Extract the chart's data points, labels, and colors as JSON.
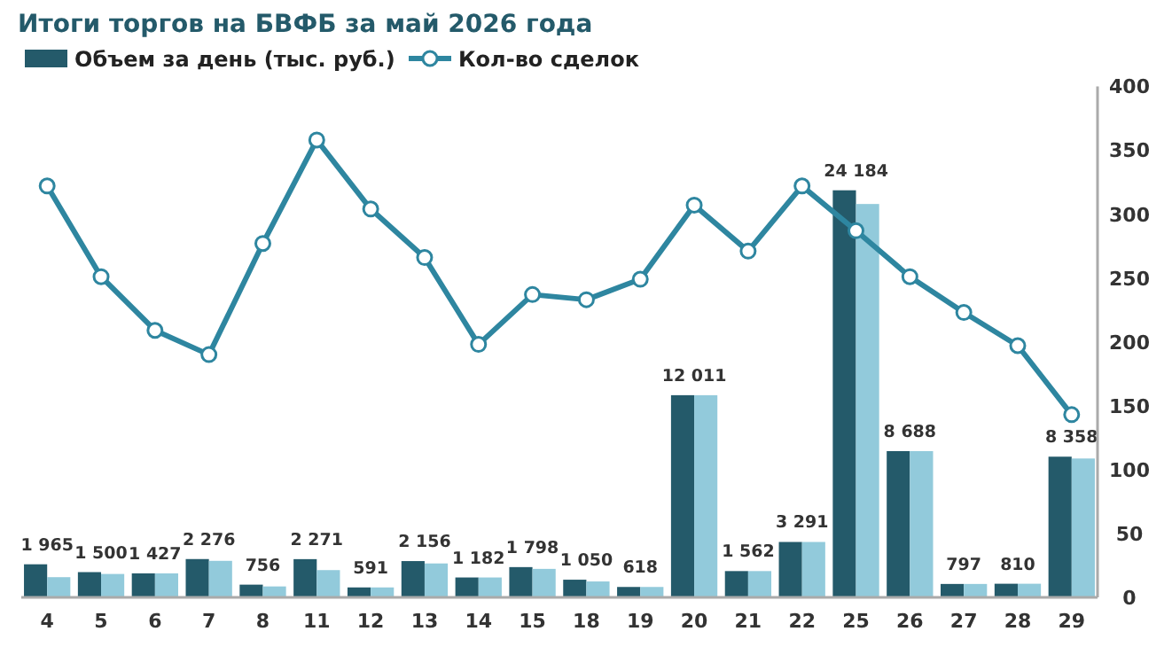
{
  "chart_data": {
    "type": "bar",
    "title": "Итоги торгов на БВФБ за май 2026 года",
    "categories": [
      "4",
      "5",
      "6",
      "7",
      "8",
      "11",
      "12",
      "13",
      "14",
      "15",
      "18",
      "19",
      "20",
      "21",
      "22",
      "25",
      "26",
      "27",
      "28",
      "29"
    ],
    "series": [
      {
        "name": "Объем за день (тыс. руб.)",
        "color": "#245a6a",
        "values": [
          1965,
          1500,
          1427,
          2276,
          756,
          2271,
          591,
          2156,
          1182,
          1798,
          1050,
          618,
          12011,
          1562,
          3291,
          24184,
          8688,
          797,
          810,
          8358
        ],
        "value_labels": [
          "1 965",
          "1 500",
          "1 427",
          "2 276",
          "756",
          "2 271",
          "591",
          "2 156",
          "1 182",
          "1 798",
          "1 050",
          "618",
          "12 011",
          "1 562",
          "3 291",
          "24 184",
          "8 688",
          "797",
          "810",
          "8 358"
        ]
      },
      {
        "color": "#92cadb",
        "values": [
          1200,
          1390,
          1427,
          2170,
          650,
          1620,
          591,
          2015,
          1182,
          1692,
          945,
          618,
          12011,
          1562,
          3291,
          23370,
          8688,
          797,
          810,
          8250
        ]
      },
      {
        "name": "Кол-во сделок",
        "type": "line",
        "axis": "y2",
        "color": "#2e86a0",
        "marker": "circle",
        "values": [
          322,
          251,
          209,
          190,
          277,
          358,
          304,
          266,
          198,
          237,
          233,
          249,
          307,
          271,
          322,
          287,
          251,
          223,
          197,
          143
        ]
      }
    ],
    "ylim": [
      0,
      30360
    ],
    "y2lim": [
      0,
      400
    ],
    "y2ticks": [
      0,
      50,
      100,
      150,
      200,
      250,
      300,
      350,
      400
    ],
    "legend": "top left",
    "grid": false
  }
}
